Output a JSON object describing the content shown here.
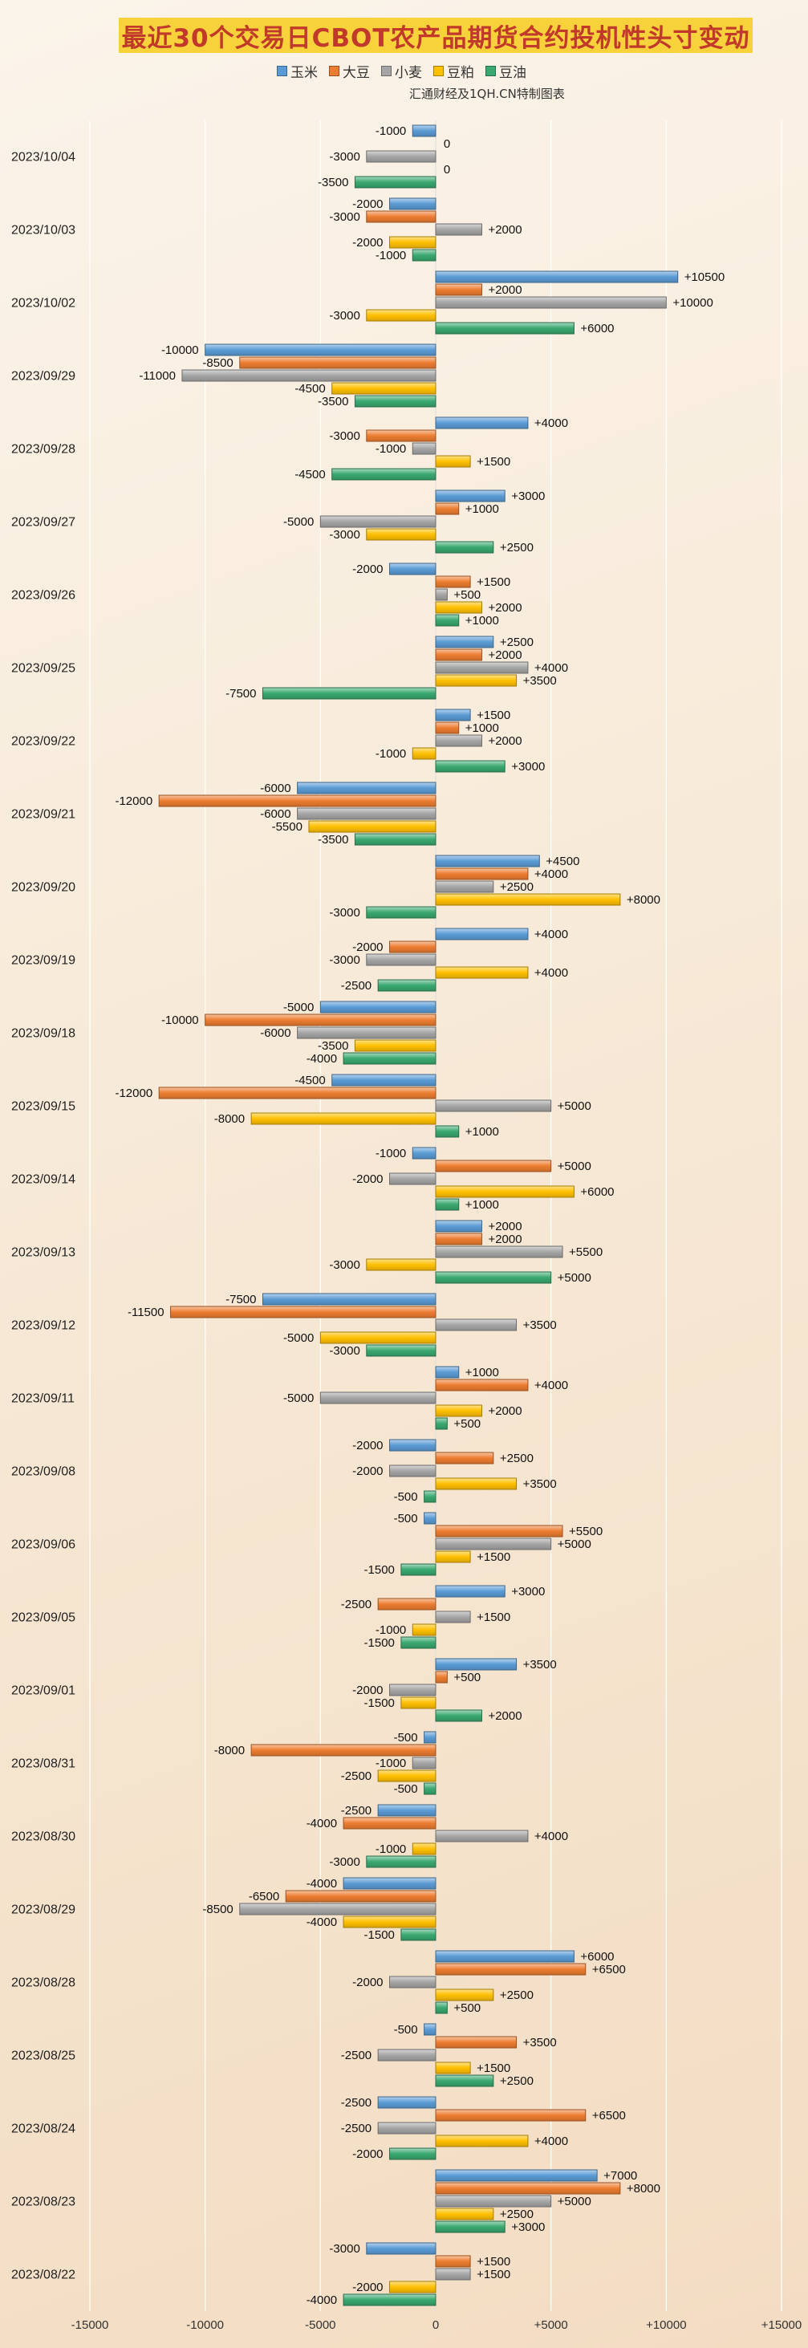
{
  "title": "最近30个交易日CBOT农产品期货合约投机性头寸变动",
  "subtitle": "汇通财经及1QH.CN特制图表",
  "chart_data": {
    "type": "bar",
    "orientation": "horizontal",
    "title": "最近30个交易日CBOT农产品期货合约投机性头寸变动",
    "subtitle": "汇通财经及1QH.CN特制图表",
    "xlim": [
      -15000,
      15000
    ],
    "xticks": [
      "-15000",
      "-10000",
      "-5000",
      "0",
      "+5000",
      "+10000",
      "+15000"
    ],
    "grid": true,
    "legend_position": "top",
    "categories": [
      "2023/10/04",
      "2023/10/03",
      "2023/10/02",
      "2023/09/29",
      "2023/09/28",
      "2023/09/27",
      "2023/09/26",
      "2023/09/25",
      "2023/09/22",
      "2023/09/21",
      "2023/09/20",
      "2023/09/19",
      "2023/09/18",
      "2023/09/15",
      "2023/09/14",
      "2023/09/13",
      "2023/09/12",
      "2023/09/11",
      "2023/09/08",
      "2023/09/06",
      "2023/09/05",
      "2023/09/01",
      "2023/08/31",
      "2023/08/30",
      "2023/08/29",
      "2023/08/28",
      "2023/08/25",
      "2023/08/24",
      "2023/08/23",
      "2023/08/22"
    ],
    "series": [
      {
        "name": "玉米",
        "color": "#5b9bd5",
        "values": [
          -1000,
          -2000,
          10500,
          -10000,
          4000,
          3000,
          -2000,
          2500,
          1500,
          -6000,
          4500,
          4000,
          -5000,
          -4500,
          -1000,
          2000,
          -7500,
          1000,
          -2000,
          -500,
          3000,
          3500,
          -500,
          -2500,
          -4000,
          6000,
          -500,
          -2500,
          7000,
          -3000
        ]
      },
      {
        "name": "大豆",
        "color": "#ed7d31",
        "values": [
          0,
          -3000,
          2000,
          -8500,
          -3000,
          1000,
          1500,
          2000,
          1000,
          -12000,
          4000,
          -2000,
          -10000,
          -12000,
          5000,
          2000,
          -11500,
          4000,
          2500,
          5500,
          -2500,
          500,
          -8000,
          -4000,
          -6500,
          6500,
          3500,
          6500,
          8000,
          1500
        ]
      },
      {
        "name": "小麦",
        "color": "#a5a5a5",
        "values": [
          -3000,
          2000,
          10000,
          -11000,
          -1000,
          -5000,
          500,
          4000,
          2000,
          -6000,
          2500,
          -3000,
          -6000,
          5000,
          -2000,
          5500,
          3500,
          -5000,
          -2000,
          5000,
          1500,
          -2000,
          -1000,
          4000,
          -8500,
          -2000,
          -2500,
          -2500,
          5000,
          1500
        ]
      },
      {
        "name": "豆粕",
        "color": "#ffc000",
        "values": [
          0,
          -2000,
          -3000,
          -4500,
          1500,
          -3000,
          2000,
          3500,
          -1000,
          -5500,
          8000,
          4000,
          -3500,
          -8000,
          6000,
          -3000,
          -5000,
          2000,
          3500,
          1500,
          -1000,
          -1500,
          -2500,
          -1000,
          -4000,
          2500,
          1500,
          4000,
          2500,
          -2000
        ]
      },
      {
        "name": "豆油",
        "color": "#3aa870",
        "values": [
          -3500,
          -1000,
          6000,
          -3500,
          -4500,
          2500,
          1000,
          -7500,
          3000,
          -3500,
          -3000,
          -2500,
          -4000,
          1000,
          1000,
          5000,
          -3000,
          500,
          -500,
          -1500,
          -1500,
          2000,
          -500,
          -3000,
          -1500,
          500,
          2500,
          -2000,
          3000,
          -4000
        ]
      }
    ]
  }
}
